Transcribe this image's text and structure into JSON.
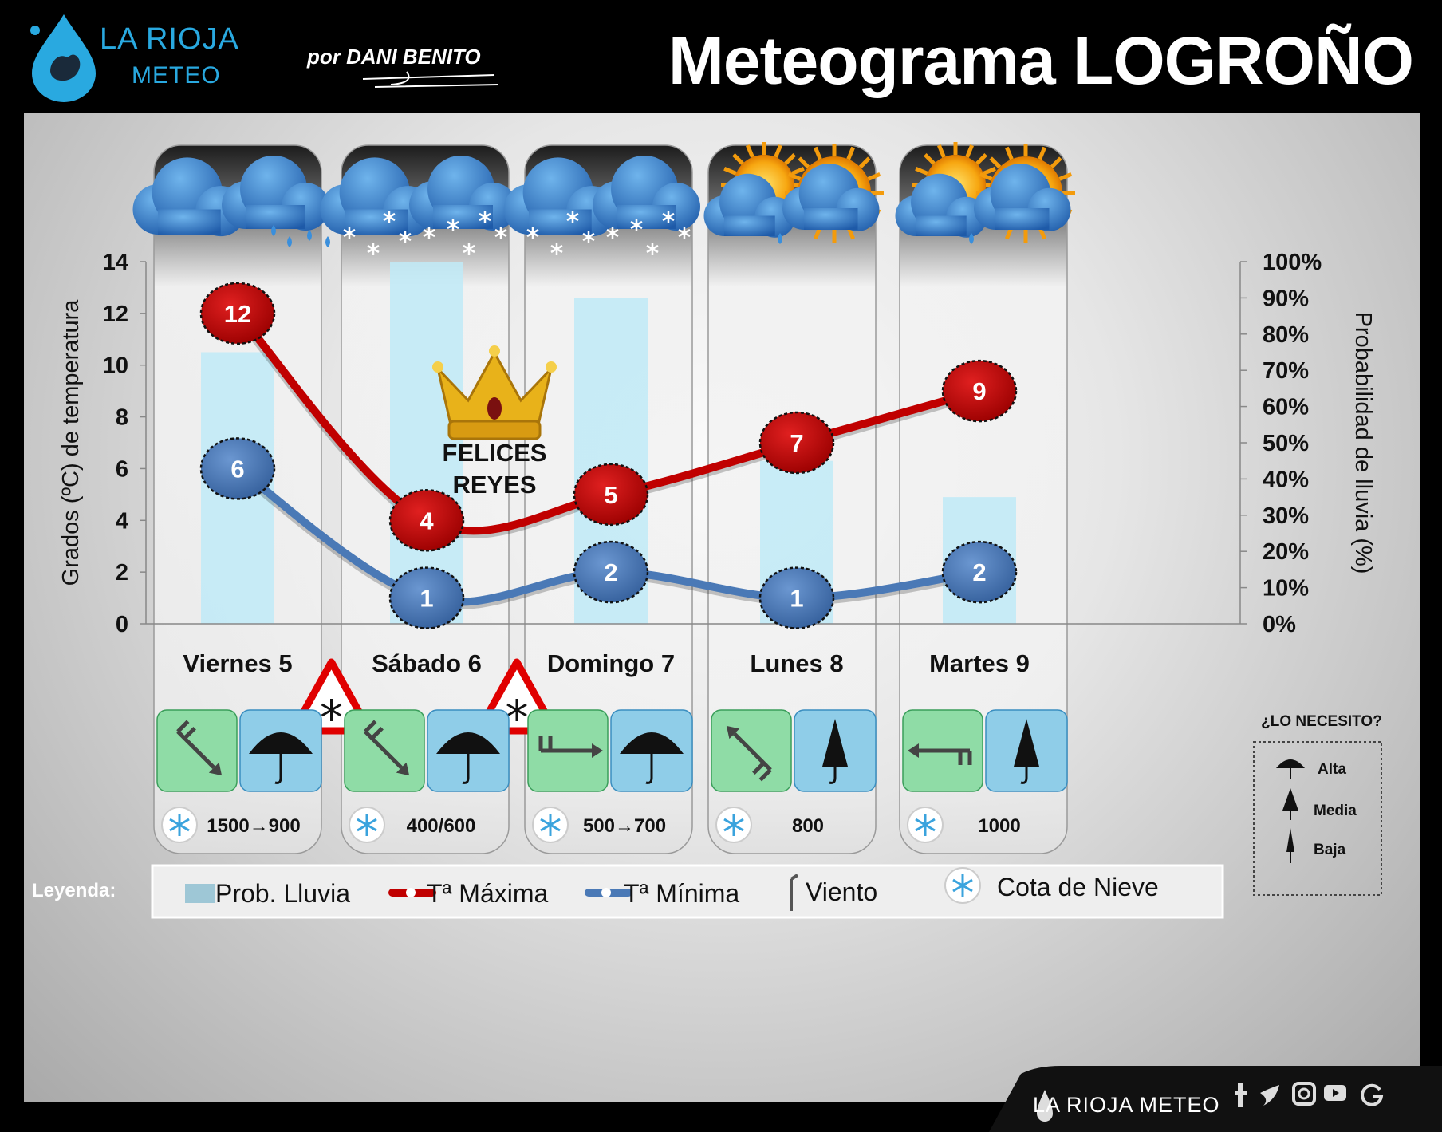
{
  "header": {
    "logo_line1": "LA RIOJA",
    "logo_line2": "METEO",
    "byline": "por DANI BENITO",
    "title": "Meteograma LOGROÑO"
  },
  "chart_data": {
    "type": "line+bar",
    "title": "Meteograma LOGROÑO",
    "categories": [
      "Viernes 5",
      "Sábado 6",
      "Domingo 7",
      "Lunes 8",
      "Martes 9"
    ],
    "ylabel_left": "Grados (ºC) de temperatura",
    "ylabel_right": "Probabilidad de lluvia (%)",
    "ylim_left": [
      0,
      14
    ],
    "yticks_left": [
      "0",
      "2",
      "4",
      "6",
      "8",
      "10",
      "12",
      "14"
    ],
    "ylim_right": [
      0,
      100
    ],
    "yticks_right": [
      "0%",
      "10%",
      "20%",
      "30%",
      "40%",
      "50%",
      "60%",
      "70%",
      "80%",
      "90%",
      "100%"
    ],
    "series": [
      {
        "name": "Prob. Lluvia",
        "type": "bar",
        "axis": "right",
        "color": "#bfeaf7",
        "values": [
          75,
          100,
          90,
          45,
          35
        ]
      },
      {
        "name": "Tª Máxima",
        "type": "line",
        "axis": "left",
        "color": "#c00000",
        "values": [
          12,
          4,
          5,
          7,
          9
        ]
      },
      {
        "name": "Tª Mínima",
        "type": "line",
        "axis": "left",
        "color": "#4a79b6",
        "values": [
          6,
          1,
          2,
          1,
          2
        ]
      }
    ],
    "weather_icons": [
      "rain-clouds-icon",
      "snow-clouds-icon",
      "snow-clouds-icon",
      "sun-clouds-icon",
      "sun-clouds-icon"
    ],
    "wind_directions": [
      "NW",
      "NW",
      "W",
      "SE",
      "E"
    ],
    "umbrella_need": [
      "Alta",
      "Alta",
      "Alta",
      "Media",
      "Media"
    ],
    "snow_level": [
      "1500→900",
      "400/600",
      "500→700",
      "800",
      "1000"
    ],
    "snow_warnings_after_day": [
      0,
      1
    ],
    "annotation": {
      "line1": "FELICES",
      "line2": "REYES"
    }
  },
  "legend": {
    "title": "Leyenda:",
    "items": [
      "Prob. Lluvia",
      "Tª Máxima",
      "Tª Mínima",
      "Viento",
      "Cota de Nieve"
    ]
  },
  "need_box": {
    "title": "¿LO NECESITO?",
    "levels": [
      "Alta",
      "Media",
      "Baja"
    ]
  },
  "footer": {
    "brand": "LA RIOJA METEO"
  },
  "colors": {
    "max": "#c00000",
    "min": "#4a79b6",
    "rain_bar": "#bfeaf7",
    "wind_box": "#8fdca6",
    "umbrella_box": "#8fcde8"
  }
}
